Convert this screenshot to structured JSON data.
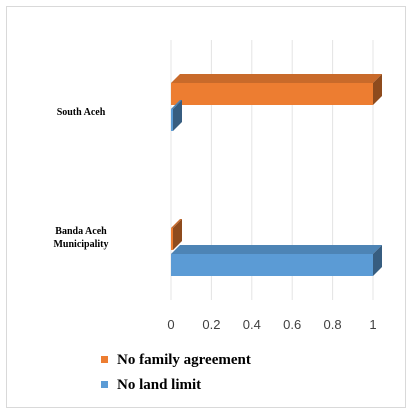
{
  "chart_data": {
    "type": "bar",
    "orientation": "horizontal",
    "style": "3d",
    "categories": [
      "South Aceh",
      "Banda Aceh Municipality"
    ],
    "series": [
      {
        "name": "No family agreement",
        "values": [
          1,
          0
        ],
        "color": "#ed7d31"
      },
      {
        "name": "No land limit",
        "values": [
          0,
          1
        ],
        "color": "#5b9bd5"
      }
    ],
    "xlim": [
      0,
      1
    ],
    "xticks": [
      "0",
      "0.2",
      "0.4",
      "0.6",
      "0.8",
      "1"
    ],
    "gridlines": true,
    "legend_position": "bottom-left"
  }
}
